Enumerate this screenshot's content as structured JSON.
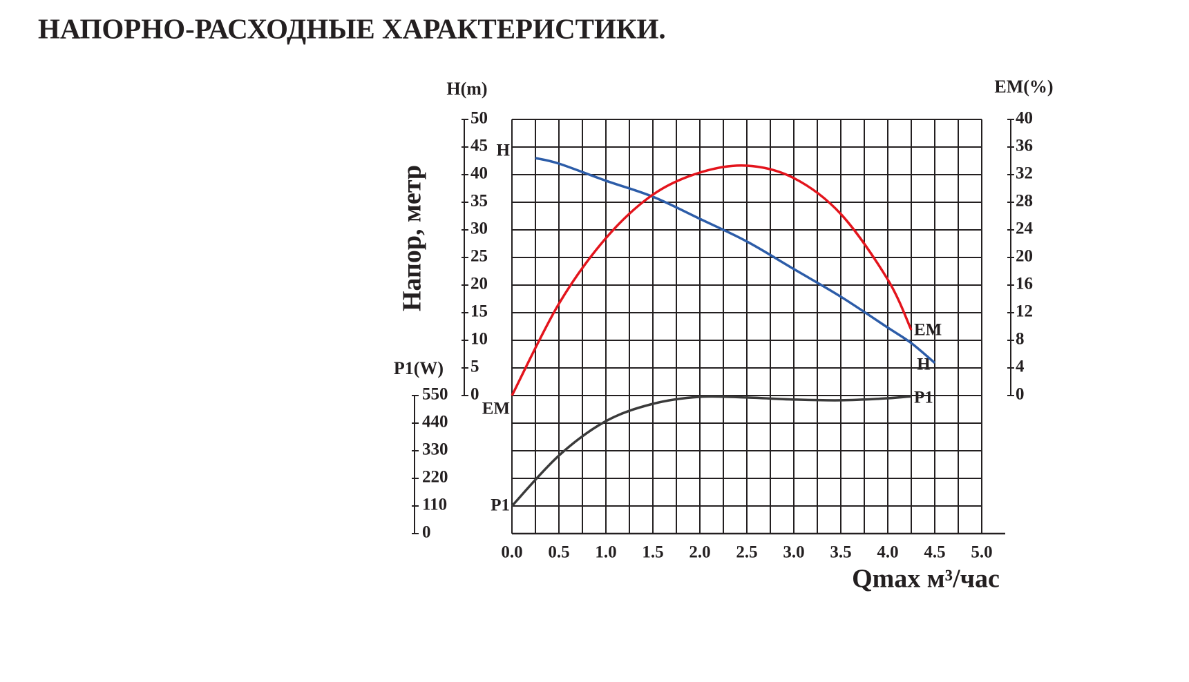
{
  "chart_data": {
    "type": "line",
    "title": "НАПОРНО-РАСХОДНЫЕ ХАРАКТЕРИСТИКИ.",
    "x_label": "Qmax м³/час",
    "y_label": "Напор, метр",
    "y_unit_label": "H(m)",
    "y2_label": "EM(%)",
    "y3_label": "P1(W)",
    "xlim": [
      0,
      5
    ],
    "xticks": [
      {
        "value": 0,
        "label": "0.0"
      },
      0.5,
      {
        "value": 1,
        "label": "1.0"
      },
      1.5,
      {
        "value": 2,
        "label": "2.0"
      },
      2.5,
      {
        "value": 3,
        "label": "3.0"
      },
      3.5,
      {
        "value": 4,
        "label": "4.0"
      },
      4.5,
      {
        "value": 5,
        "label": "5.0"
      }
    ],
    "xgrid": [
      0,
      0.25,
      0.5,
      0.75,
      1,
      1.25,
      1.5,
      1.75,
      2,
      2.25,
      2.5,
      2.75,
      3,
      3.25,
      3.5,
      3.75,
      4,
      4.25,
      4.5,
      4.75,
      5
    ],
    "ylim": [
      0,
      50
    ],
    "yticks": [
      0,
      5,
      10,
      15,
      20,
      25,
      30,
      35,
      40,
      45,
      50
    ],
    "y2lim": [
      0,
      40
    ],
    "y2ticks": [
      0,
      4,
      8,
      12,
      16,
      20,
      24,
      28,
      32,
      36,
      40
    ],
    "y3lim": [
      0,
      550
    ],
    "y3ticks": [
      0,
      110,
      220,
      330,
      440,
      550
    ],
    "grid": true,
    "series": [
      {
        "name": "H",
        "color": "#2c5ca8",
        "axis": "y",
        "x": [
          0.25,
          0.5,
          1.0,
          1.5,
          2.0,
          2.5,
          3.0,
          3.5,
          4.0,
          4.25,
          4.5
        ],
        "values": [
          43,
          42,
          38.9,
          36,
          32,
          27.9,
          22.9,
          17.9,
          12.3,
          9.5,
          5.9
        ]
      },
      {
        "name": "EM",
        "color": "#e3141c",
        "axis": "y2",
        "x": [
          0,
          0.5,
          1.0,
          1.5,
          2.0,
          2.5,
          3.0,
          3.5,
          4.0,
          4.25
        ],
        "values": [
          0,
          13.3,
          22.8,
          29.1,
          32.3,
          33.3,
          31.5,
          26.3,
          16.8,
          9.5
        ]
      },
      {
        "name": "P1",
        "color": "#3a3a3a",
        "axis": "y3",
        "x": [
          0,
          0.5,
          1.0,
          1.5,
          2.0,
          2.5,
          3.0,
          3.5,
          4.0,
          4.25
        ],
        "values": [
          110,
          311,
          448,
          517,
          545,
          542,
          534,
          531,
          539,
          547
        ]
      }
    ]
  }
}
